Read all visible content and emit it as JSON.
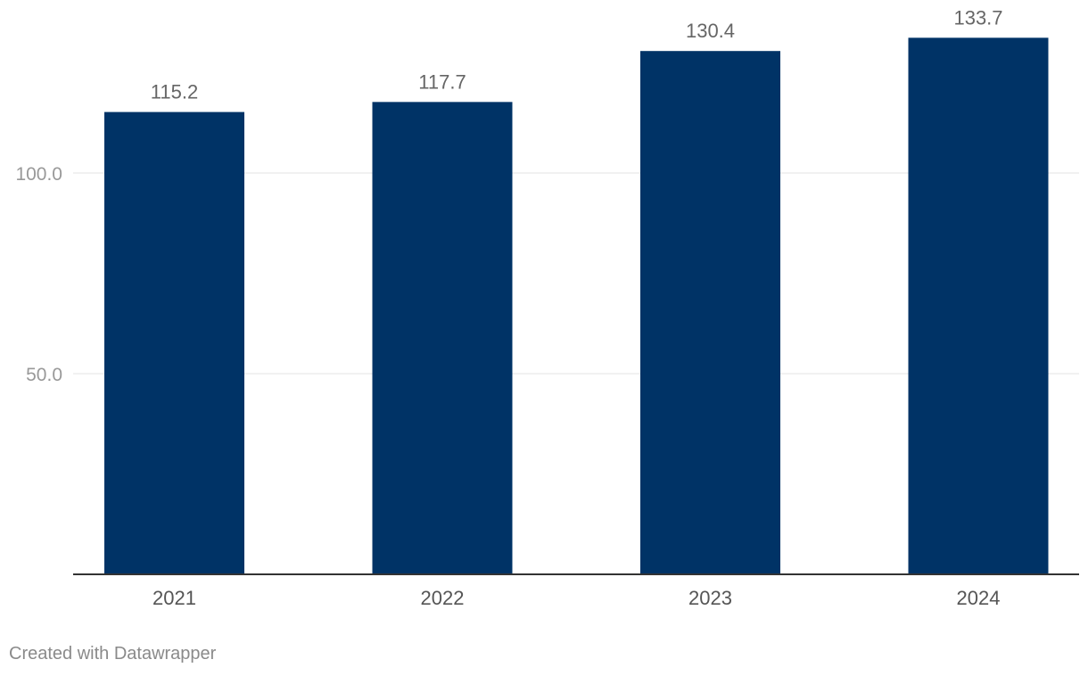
{
  "chart_data": {
    "type": "bar",
    "title": "",
    "xlabel": "",
    "ylabel": "",
    "categories": [
      "2021",
      "2022",
      "2023",
      "2024"
    ],
    "values": [
      115.2,
      117.7,
      130.4,
      133.7
    ],
    "value_labels": [
      "115.2",
      "117.7",
      "130.4",
      "133.7"
    ],
    "y_ticks": [
      {
        "value": 50,
        "label": "50.0"
      },
      {
        "value": 100,
        "label": "100.0"
      }
    ],
    "ylim": [
      0,
      140
    ],
    "grid": true,
    "legend": "none",
    "bar_color": "#003366",
    "grid_color": "#e3e3e3",
    "baseline_color": "#333333"
  },
  "footer": {
    "credit": "Created with Datawrapper"
  }
}
